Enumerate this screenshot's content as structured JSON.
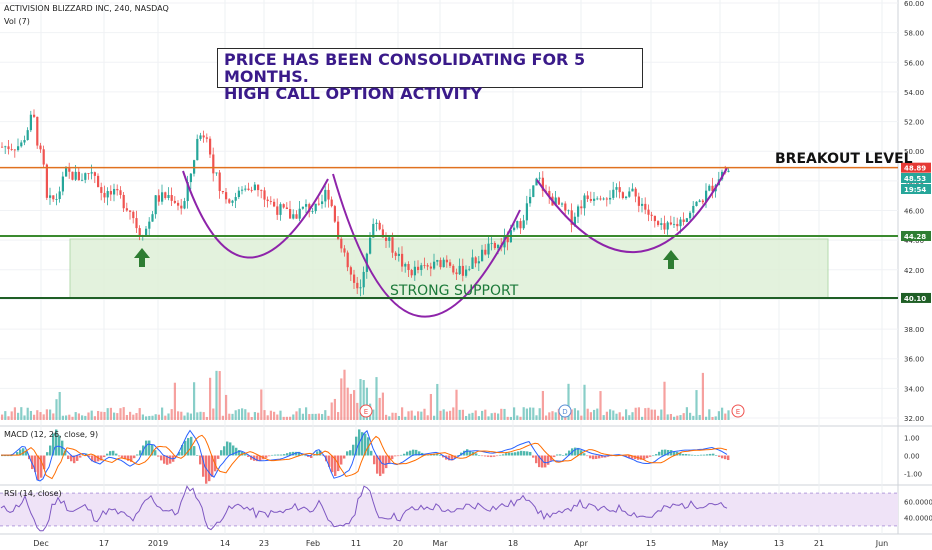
{
  "header": {
    "symbol_line": "ACTIVISION BLIZZARD INC, 240, NASDAQ",
    "vol_label": "Vol (7)",
    "macd_label": "MACD (12, 26, close, 9)",
    "rsi_label": "RSI (14, close)"
  },
  "annotations": {
    "note_line1": "PRICE HAS BEEN CONSOLIDATING FOR 5 MONTHS.",
    "note_line2": "HIGH CALL OPTION ACTIVITY",
    "breakout": "BREAKOUT LEVEL",
    "support": "STRONG SUPPORT",
    "earnings_marker": "E",
    "dividend_marker": "D"
  },
  "colors": {
    "up": "#26a69a",
    "down": "#ef5350",
    "resistance": "#e0711f",
    "support_line": "#3a8a2f",
    "support_zone": "#dff0d8",
    "pattern_curve": "#8e24aa",
    "arrow": "#2e7d32",
    "rsi_band": "#efe3f7"
  },
  "chart_data": {
    "type": "candlestick",
    "x_ticks": [
      "Dec",
      "17",
      "2019",
      "14",
      "23",
      "Feb",
      "11",
      "20",
      "Mar",
      "18",
      "Apr",
      "15",
      "May",
      "13",
      "21",
      "Jun"
    ],
    "price_axis": {
      "ticks": [
        "60.00",
        "58.00",
        "56.00",
        "54.00",
        "52.00",
        "50.00",
        "48.00",
        "46.00",
        "44.00",
        "42.00",
        "40.00",
        "38.00",
        "36.00",
        "34.00",
        "32.00"
      ],
      "ylim": [
        31.5,
        60
      ]
    },
    "price_path": [
      [
        0,
        50.3
      ],
      [
        20,
        50.4
      ],
      [
        32,
        52.5
      ],
      [
        38,
        50.0
      ],
      [
        42,
        49.2
      ],
      [
        46,
        46.5
      ],
      [
        55,
        46.8
      ],
      [
        65,
        48.5
      ],
      [
        80,
        48.2
      ],
      [
        92,
        48.8
      ],
      [
        100,
        47.3
      ],
      [
        118,
        46.9
      ],
      [
        130,
        46.0
      ],
      [
        138,
        44.5
      ],
      [
        146,
        44.8
      ],
      [
        155,
        46.8
      ],
      [
        170,
        47.0
      ],
      [
        182,
        46.1
      ],
      [
        190,
        48.6
      ],
      [
        197,
        51.0
      ],
      [
        206,
        51.3
      ],
      [
        212,
        49.0
      ],
      [
        220,
        47.1
      ],
      [
        232,
        46.8
      ],
      [
        250,
        47.8
      ],
      [
        262,
        47.0
      ],
      [
        275,
        46.2
      ],
      [
        290,
        45.6
      ],
      [
        305,
        46.2
      ],
      [
        318,
        46.0
      ],
      [
        326,
        47.5
      ],
      [
        334,
        45.5
      ],
      [
        340,
        43.4
      ],
      [
        350,
        41.5
      ],
      [
        358,
        40.1
      ],
      [
        366,
        43.5
      ],
      [
        375,
        45.4
      ],
      [
        383,
        44.2
      ],
      [
        395,
        43.2
      ],
      [
        405,
        41.9
      ],
      [
        420,
        42.0
      ],
      [
        432,
        42.2
      ],
      [
        445,
        42.8
      ],
      [
        458,
        41.8
      ],
      [
        472,
        42.5
      ],
      [
        485,
        43.3
      ],
      [
        498,
        43.6
      ],
      [
        510,
        44.3
      ],
      [
        520,
        45.3
      ],
      [
        530,
        47.0
      ],
      [
        537,
        48.2
      ],
      [
        545,
        47.1
      ],
      [
        558,
        46.3
      ],
      [
        570,
        45.4
      ],
      [
        582,
        46.7
      ],
      [
        596,
        47.2
      ],
      [
        612,
        47.1
      ],
      [
        628,
        47.3
      ],
      [
        642,
        46.4
      ],
      [
        652,
        45.2
      ],
      [
        662,
        44.6
      ],
      [
        676,
        45.1
      ],
      [
        688,
        45.9
      ],
      [
        700,
        46.7
      ],
      [
        712,
        47.7
      ],
      [
        720,
        48.6
      ],
      [
        728,
        48.7
      ]
    ],
    "levels": {
      "breakout": {
        "value": 48.89,
        "label": "48.89"
      },
      "support_upper": {
        "value": 44.28,
        "label": "44.28"
      },
      "support_lower": {
        "value": 40.1,
        "label": "40.10"
      },
      "last_price": {
        "value": 48.53,
        "label": "48.53"
      },
      "countdown": {
        "label": "19:54"
      }
    },
    "macd_axis": {
      "ticks": [
        "1.00",
        "0.00",
        "-1.00"
      ],
      "ylim": [
        -1.6,
        1.6
      ]
    },
    "rsi_axis": {
      "ticks": [
        "60.0000",
        "40.0000"
      ],
      "ylim": [
        20,
        80
      ],
      "band": [
        30,
        70
      ]
    },
    "events": [
      {
        "type": "E",
        "date_index": 366
      },
      {
        "type": "D",
        "date_index": 565
      },
      {
        "type": "E",
        "date_index": 738
      }
    ]
  }
}
